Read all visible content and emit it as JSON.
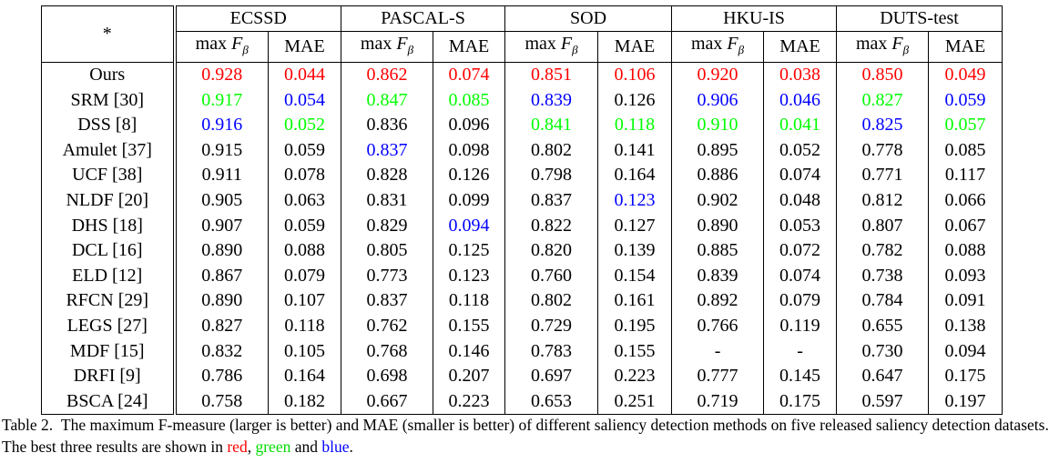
{
  "corner": "*",
  "datasets": [
    "ECSSD",
    "PASCAL-S",
    "SOD",
    "HKU-IS",
    "DUTS-test"
  ],
  "metric_labels": {
    "fmax_prefix": "max ",
    "fmax_var": "F",
    "fmax_sub": "β",
    "mae": "MAE"
  },
  "colors": {
    "r": "#ff0000",
    "g": "#00ff00",
    "b": "#0000ff",
    "k": "#000000"
  },
  "rows": [
    {
      "method": "Ours",
      "values": [
        "0.928",
        "0.044",
        "0.862",
        "0.074",
        "0.851",
        "0.106",
        "0.920",
        "0.038",
        "0.850",
        "0.049"
      ],
      "colors": [
        "r",
        "r",
        "r",
        "r",
        "r",
        "r",
        "r",
        "r",
        "r",
        "r"
      ]
    },
    {
      "method": "SRM [30]",
      "values": [
        "0.917",
        "0.054",
        "0.847",
        "0.085",
        "0.839",
        "0.126",
        "0.906",
        "0.046",
        "0.827",
        "0.059"
      ],
      "colors": [
        "g",
        "b",
        "g",
        "g",
        "b",
        "k",
        "b",
        "b",
        "g",
        "b"
      ]
    },
    {
      "method": "DSS [8]",
      "values": [
        "0.916",
        "0.052",
        "0.836",
        "0.096",
        "0.841",
        "0.118",
        "0.910",
        "0.041",
        "0.825",
        "0.057"
      ],
      "colors": [
        "b",
        "g",
        "k",
        "k",
        "g",
        "g",
        "g",
        "g",
        "b",
        "g"
      ]
    },
    {
      "method": "Amulet [37]",
      "values": [
        "0.915",
        "0.059",
        "0.837",
        "0.098",
        "0.802",
        "0.141",
        "0.895",
        "0.052",
        "0.778",
        "0.085"
      ],
      "colors": [
        "k",
        "k",
        "b",
        "k",
        "k",
        "k",
        "k",
        "k",
        "k",
        "k"
      ]
    },
    {
      "method": "UCF [38]",
      "values": [
        "0.911",
        "0.078",
        "0.828",
        "0.126",
        "0.798",
        "0.164",
        "0.886",
        "0.074",
        "0.771",
        "0.117"
      ],
      "colors": [
        "k",
        "k",
        "k",
        "k",
        "k",
        "k",
        "k",
        "k",
        "k",
        "k"
      ]
    },
    {
      "method": "NLDF [20]",
      "values": [
        "0.905",
        "0.063",
        "0.831",
        "0.099",
        "0.837",
        "0.123",
        "0.902",
        "0.048",
        "0.812",
        "0.066"
      ],
      "colors": [
        "k",
        "k",
        "k",
        "k",
        "k",
        "b",
        "k",
        "k",
        "k",
        "k"
      ]
    },
    {
      "method": "DHS [18]",
      "values": [
        "0.907",
        "0.059",
        "0.829",
        "0.094",
        "0.822",
        "0.127",
        "0.890",
        "0.053",
        "0.807",
        "0.067"
      ],
      "colors": [
        "k",
        "k",
        "k",
        "b",
        "k",
        "k",
        "k",
        "k",
        "k",
        "k"
      ]
    },
    {
      "method": "DCL [16]",
      "values": [
        "0.890",
        "0.088",
        "0.805",
        "0.125",
        "0.820",
        "0.139",
        "0.885",
        "0.072",
        "0.782",
        "0.088"
      ],
      "colors": [
        "k",
        "k",
        "k",
        "k",
        "k",
        "k",
        "k",
        "k",
        "k",
        "k"
      ]
    },
    {
      "method": "ELD [12]",
      "values": [
        "0.867",
        "0.079",
        "0.773",
        "0.123",
        "0.760",
        "0.154",
        "0.839",
        "0.074",
        "0.738",
        "0.093"
      ],
      "colors": [
        "k",
        "k",
        "k",
        "k",
        "k",
        "k",
        "k",
        "k",
        "k",
        "k"
      ]
    },
    {
      "method": "RFCN [29]",
      "values": [
        "0.890",
        "0.107",
        "0.837",
        "0.118",
        "0.802",
        "0.161",
        "0.892",
        "0.079",
        "0.784",
        "0.091"
      ],
      "colors": [
        "k",
        "k",
        "k",
        "k",
        "k",
        "k",
        "k",
        "k",
        "k",
        "k"
      ]
    },
    {
      "method": "LEGS [27]",
      "values": [
        "0.827",
        "0.118",
        "0.762",
        "0.155",
        "0.729",
        "0.195",
        "0.766",
        "0.119",
        "0.655",
        "0.138"
      ],
      "colors": [
        "k",
        "k",
        "k",
        "k",
        "k",
        "k",
        "k",
        "k",
        "k",
        "k"
      ]
    },
    {
      "method": "MDF [15]",
      "values": [
        "0.832",
        "0.105",
        "0.768",
        "0.146",
        "0.783",
        "0.155",
        "-",
        "-",
        "0.730",
        "0.094"
      ],
      "colors": [
        "k",
        "k",
        "k",
        "k",
        "k",
        "k",
        "k",
        "k",
        "k",
        "k"
      ]
    },
    {
      "method": "DRFI [9]",
      "values": [
        "0.786",
        "0.164",
        "0.698",
        "0.207",
        "0.697",
        "0.223",
        "0.777",
        "0.145",
        "0.647",
        "0.175"
      ],
      "colors": [
        "k",
        "k",
        "k",
        "k",
        "k",
        "k",
        "k",
        "k",
        "k",
        "k"
      ]
    },
    {
      "method": "BSCA [24]",
      "values": [
        "0.758",
        "0.182",
        "0.667",
        "0.223",
        "0.653",
        "0.251",
        "0.719",
        "0.175",
        "0.597",
        "0.197"
      ],
      "colors": [
        "k",
        "k",
        "k",
        "k",
        "k",
        "k",
        "k",
        "k",
        "k",
        "k"
      ]
    }
  ],
  "caption": {
    "label": "Table 2.",
    "text1": "The maximum F-measure (larger is better) and MAE (smaller is better) of different saliency detection methods on five released saliency detection datasets. The best three results are shown in ",
    "red": "red",
    "sep": ", ",
    "green": "green",
    "and": " and ",
    "blue": "blue",
    "end": "."
  }
}
